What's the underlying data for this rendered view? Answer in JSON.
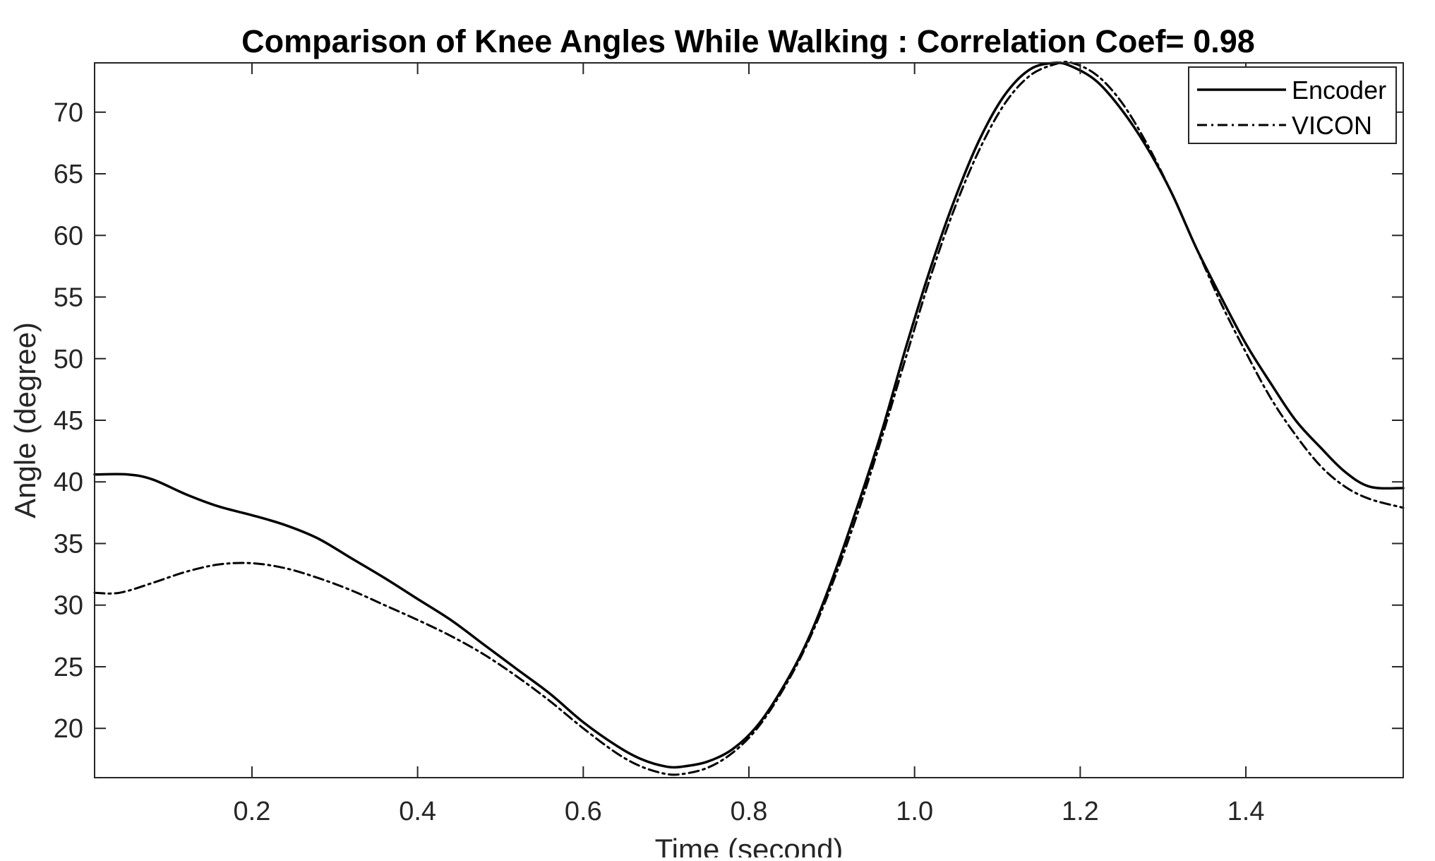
{
  "chart_data": {
    "type": "line",
    "title": "Comparison of Knee Angles While Walking : Correlation Coef= 0.98",
    "xlabel": "Time (second)",
    "ylabel": "Angle (degree)",
    "xlim": [
      0.01,
      1.59
    ],
    "ylim": [
      16,
      74
    ],
    "xticks": [
      0.2,
      0.4,
      0.6,
      0.8,
      1.0,
      1.2,
      1.4
    ],
    "xtick_labels": [
      "0.2",
      "0.4",
      "0.6",
      "0.8",
      "1.0",
      "1.2",
      "1.4"
    ],
    "yticks": [
      20,
      25,
      30,
      35,
      40,
      45,
      50,
      55,
      60,
      65,
      70
    ],
    "ytick_labels": [
      "20",
      "25",
      "30",
      "35",
      "40",
      "45",
      "50",
      "55",
      "60",
      "65",
      "70"
    ],
    "grid": false,
    "legend_position": "top-right",
    "series": [
      {
        "name": "Encoder",
        "style": "solid",
        "color": "#000000",
        "x": [
          0.01,
          0.05,
          0.08,
          0.12,
          0.16,
          0.2,
          0.24,
          0.28,
          0.32,
          0.36,
          0.4,
          0.44,
          0.48,
          0.52,
          0.56,
          0.6,
          0.64,
          0.67,
          0.7,
          0.72,
          0.75,
          0.78,
          0.81,
          0.84,
          0.87,
          0.9,
          0.93,
          0.96,
          0.99,
          1.02,
          1.05,
          1.08,
          1.11,
          1.14,
          1.17,
          1.19,
          1.22,
          1.25,
          1.28,
          1.31,
          1.34,
          1.37,
          1.4,
          1.43,
          1.46,
          1.49,
          1.52,
          1.55,
          1.59
        ],
        "y": [
          40.6,
          40.6,
          40.2,
          39.0,
          38.0,
          37.3,
          36.5,
          35.4,
          33.8,
          32.2,
          30.5,
          28.8,
          26.8,
          24.8,
          22.8,
          20.5,
          18.6,
          17.5,
          16.9,
          16.9,
          17.3,
          18.3,
          20.2,
          23.2,
          27.0,
          32.0,
          37.8,
          44.0,
          51.0,
          57.5,
          63.2,
          68.0,
          71.5,
          73.5,
          74.0,
          73.7,
          72.5,
          70.2,
          67.2,
          63.5,
          59.0,
          55.0,
          51.2,
          48.0,
          45.0,
          42.8,
          40.8,
          39.6,
          39.5
        ]
      },
      {
        "name": "VICON",
        "style": "dash-dot",
        "color": "#000000",
        "x": [
          0.01,
          0.04,
          0.08,
          0.12,
          0.16,
          0.2,
          0.24,
          0.28,
          0.32,
          0.36,
          0.4,
          0.44,
          0.48,
          0.52,
          0.56,
          0.6,
          0.64,
          0.67,
          0.7,
          0.72,
          0.75,
          0.78,
          0.81,
          0.84,
          0.87,
          0.9,
          0.93,
          0.96,
          0.99,
          1.02,
          1.05,
          1.08,
          1.11,
          1.14,
          1.17,
          1.19,
          1.22,
          1.25,
          1.28,
          1.31,
          1.34,
          1.37,
          1.4,
          1.43,
          1.46,
          1.49,
          1.52,
          1.55,
          1.59
        ],
        "y": [
          31.0,
          31.0,
          31.8,
          32.7,
          33.3,
          33.4,
          33.0,
          32.2,
          31.2,
          30.0,
          28.8,
          27.5,
          26.0,
          24.2,
          22.2,
          20.0,
          18.0,
          16.9,
          16.3,
          16.3,
          16.8,
          18.0,
          20.0,
          23.0,
          26.8,
          31.6,
          37.2,
          43.5,
          50.2,
          56.8,
          62.5,
          67.2,
          70.8,
          73.0,
          73.9,
          74.0,
          73.0,
          70.8,
          67.5,
          63.5,
          59.0,
          54.5,
          50.5,
          46.8,
          43.8,
          41.3,
          39.6,
          38.6,
          37.9
        ]
      }
    ]
  }
}
